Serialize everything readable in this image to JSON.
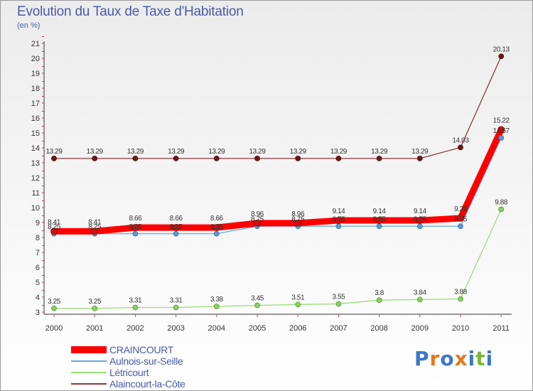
{
  "chart_data": {
    "type": "line",
    "title": "Evolution du Taux de Taxe d'Habitation",
    "subtitle": "(en %)",
    "x": [
      "2000",
      "2001",
      "2002",
      "2003",
      "2004",
      "2005",
      "2006",
      "2007",
      "2008",
      "2009",
      "2010",
      "2011"
    ],
    "ylim": [
      3,
      21
    ],
    "yticks": [
      3,
      4,
      5,
      6,
      7,
      8,
      9,
      10,
      11,
      12,
      13,
      14,
      15,
      16,
      17,
      18,
      19,
      20,
      21
    ],
    "legend_position": "bottom-left",
    "series": [
      {
        "name": "CRAINCOURT",
        "color": "#ff0000",
        "values": [
          8.41,
          8.41,
          8.66,
          8.66,
          8.66,
          8.96,
          8.96,
          9.14,
          9.14,
          9.14,
          9.29,
          15.22
        ],
        "labels": [
          "8.41",
          "8.41",
          "8.66",
          "8.66",
          "8.66",
          "8.96",
          "8.96",
          "9.14",
          "9.14",
          "9.14",
          "9.29",
          "15.22"
        ]
      },
      {
        "name": "Aulnois-sur-Seille",
        "color": "#6aa8dc",
        "values": [
          8.25,
          8.25,
          8.25,
          8.25,
          8.25,
          8.75,
          8.75,
          8.75,
          8.75,
          8.75,
          8.75,
          14.67
        ],
        "labels": [
          "8.25",
          "8.25",
          "8.25",
          "8.25",
          "8.25",
          "8.75",
          "8.75",
          "8.75",
          "8.75",
          "8.75",
          "8.75",
          "14.67"
        ]
      },
      {
        "name": "Létricourt",
        "color": "#99e077",
        "values": [
          3.25,
          3.25,
          3.31,
          3.31,
          3.38,
          3.45,
          3.51,
          3.55,
          3.8,
          3.84,
          3.88,
          9.88
        ],
        "labels": [
          "3.25",
          "3.25",
          "3.31",
          "3.31",
          "3.38",
          "3.45",
          "3.51",
          "3.55",
          "3.8",
          "3.84",
          "3.88",
          "9.88"
        ]
      },
      {
        "name": "Alaincourt-la-Côte",
        "color": "#8a3a3a",
        "values": [
          13.29,
          13.29,
          13.29,
          13.29,
          13.29,
          13.29,
          13.29,
          13.29,
          13.29,
          13.29,
          14.03,
          20.13
        ],
        "labels": [
          "13.29",
          "13.29",
          "13.29",
          "13.29",
          "13.29",
          "13.29",
          "13.29",
          "13.29",
          "13.29",
          "13.29",
          "14.03",
          "20.13"
        ]
      }
    ]
  },
  "branding": {
    "logo_letters": [
      "P",
      "r",
      "o",
      "x",
      "i",
      "t",
      "i"
    ],
    "logo_colors": [
      "#3a78c8",
      "#e07a20",
      "#3a78c8",
      "#e07a20",
      "#3a78c8",
      "#7ab838",
      "#3a78c8"
    ]
  }
}
